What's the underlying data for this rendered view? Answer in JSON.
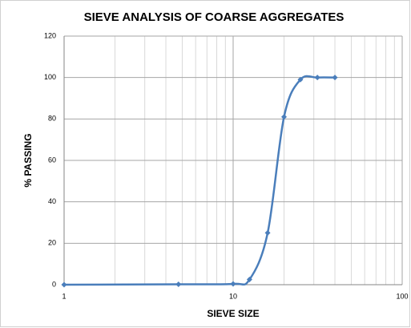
{
  "chart_data": {
    "type": "line",
    "title": "SIEVE ANALYSIS OF COARSE AGGREGATES",
    "x_label": "SIEVE SIZE",
    "y_label": "% PASSING",
    "x": [
      1,
      4.75,
      10,
      12.5,
      16,
      20,
      25,
      31.5,
      40
    ],
    "series": [
      {
        "name": "% PASSING",
        "color": "#4a7ebb",
        "values": [
          0,
          0.2,
          0.4,
          2.5,
          25,
          81,
          99,
          100,
          100
        ]
      }
    ],
    "xlim": [
      1,
      100
    ],
    "xticks": [
      1,
      10,
      100
    ],
    "x_log": true,
    "x_minor_ticks": [
      2,
      3,
      4,
      5,
      6,
      7,
      8,
      9,
      20,
      30,
      40,
      50,
      60,
      70,
      80,
      90
    ],
    "ylim": [
      0,
      120
    ],
    "yticks": [
      0,
      20,
      40,
      60,
      80,
      100,
      120
    ],
    "grid": true
  }
}
